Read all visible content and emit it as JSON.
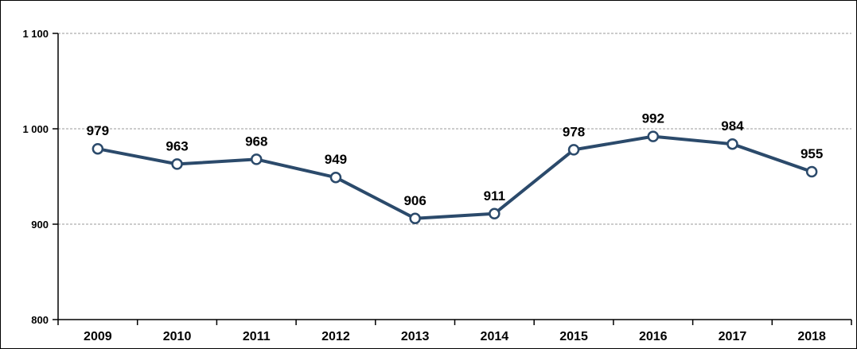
{
  "chart_data": {
    "type": "line",
    "title": "",
    "categories": [
      "2009",
      "2010",
      "2011",
      "2012",
      "2013",
      "2014",
      "2015",
      "2016",
      "2017",
      "2018"
    ],
    "series": [
      {
        "name": "",
        "values": [
          979,
          963,
          968,
          949,
          906,
          911,
          978,
          992,
          984,
          955
        ],
        "data_labels": [
          "979",
          "963",
          "968",
          "949",
          "906",
          "911",
          "978",
          "992",
          "984",
          "955"
        ]
      }
    ],
    "xlabel": "",
    "ylabel": "",
    "ylim": [
      800,
      1100
    ],
    "y_ticks": [
      {
        "value": 1100,
        "label": "1 100"
      },
      {
        "value": 1000,
        "label": "1 000"
      },
      {
        "value": 900,
        "label": "900"
      },
      {
        "value": 800,
        "label": "800"
      }
    ],
    "grid": "horizontal-dashed",
    "legend": "none",
    "colors": {
      "line": "#2B4A6B",
      "marker_fill": "#FFFFFF",
      "marker_stroke": "#2B4A6B",
      "gridline": "#999999",
      "axis": "#000000",
      "text": "#000000",
      "background": "#FFFFFF",
      "frame_border": "#000000"
    }
  }
}
